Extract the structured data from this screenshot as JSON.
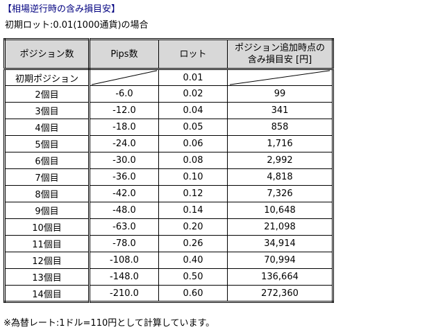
{
  "page": {
    "title": "【相場逆行時の含み損目安】",
    "subtitle": "初期ロット:0.01(1000通貨)の場合",
    "footnote": "※為替レート:1ドル=110円として計算しています。"
  },
  "colors": {
    "title_text": "#000080",
    "body_text": "#000000",
    "table_border": "#000000",
    "header_bg": "#d8d8d8",
    "cell_bg": "#ffffff"
  },
  "chart_data": {
    "type": "table",
    "title": "相場逆行時の含み損目安",
    "columns": [
      "ポジション数",
      "Pips数",
      "ロット",
      "ポジション追加時点の含み損目安 [円]"
    ],
    "col4_line1": "ポジション追加時点の",
    "col4_line2": "含み損目安 [円]",
    "rows": [
      {
        "position": "初期ポジション",
        "pips": "",
        "lot": "0.01",
        "loss": "",
        "pips_na": true,
        "loss_na": true
      },
      {
        "position": "2個目",
        "pips": "-6.0",
        "lot": "0.02",
        "loss": "99"
      },
      {
        "position": "3個目",
        "pips": "-12.0",
        "lot": "0.04",
        "loss": "341"
      },
      {
        "position": "4個目",
        "pips": "-18.0",
        "lot": "0.05",
        "loss": "858"
      },
      {
        "position": "5個目",
        "pips": "-24.0",
        "lot": "0.06",
        "loss": "1,716"
      },
      {
        "position": "6個目",
        "pips": "-30.0",
        "lot": "0.08",
        "loss": "2,992"
      },
      {
        "position": "7個目",
        "pips": "-36.0",
        "lot": "0.10",
        "loss": "4,818"
      },
      {
        "position": "8個目",
        "pips": "-42.0",
        "lot": "0.12",
        "loss": "7,326"
      },
      {
        "position": "9個目",
        "pips": "-48.0",
        "lot": "0.14",
        "loss": "10,648"
      },
      {
        "position": "10個目",
        "pips": "-63.0",
        "lot": "0.20",
        "loss": "21,098"
      },
      {
        "position": "11個目",
        "pips": "-78.0",
        "lot": "0.26",
        "loss": "34,914"
      },
      {
        "position": "12個目",
        "pips": "-108.0",
        "lot": "0.40",
        "loss": "70,994"
      },
      {
        "position": "13個目",
        "pips": "-148.0",
        "lot": "0.50",
        "loss": "136,664"
      },
      {
        "position": "14個目",
        "pips": "-210.0",
        "lot": "0.60",
        "loss": "272,360"
      }
    ]
  }
}
